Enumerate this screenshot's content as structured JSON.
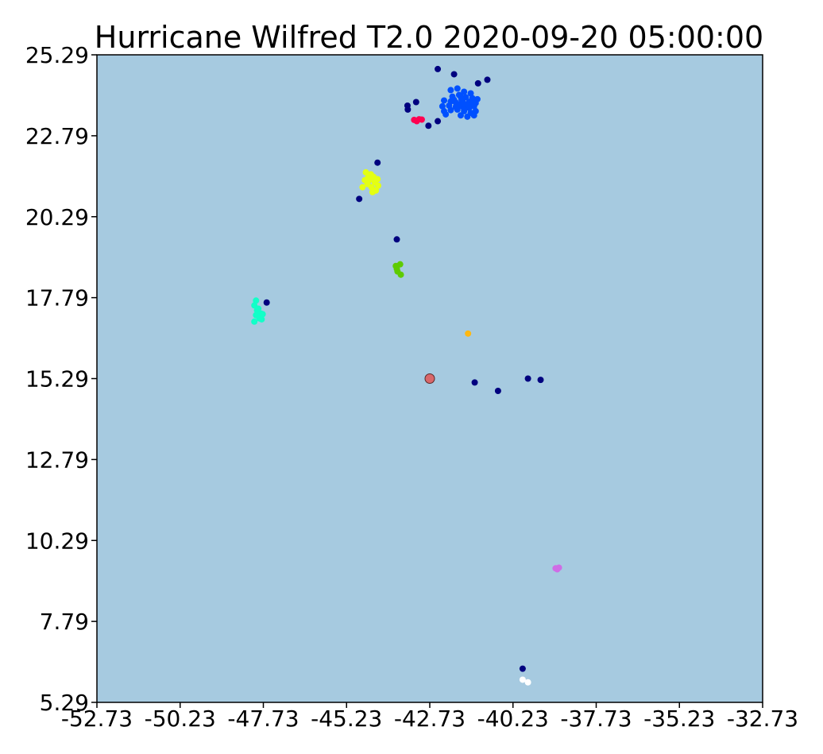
{
  "chart_data": {
    "type": "scatter",
    "title": "Hurricane Wilfred T2.0 2020-09-20 05:00:00",
    "xlabel": "",
    "ylabel": "",
    "xlim": [
      -52.73,
      -32.73
    ],
    "ylim": [
      5.29,
      25.29
    ],
    "grid": false,
    "background_color": "#a6cae0",
    "xticks": [
      "-52.73",
      "-50.23",
      "-47.73",
      "-45.23",
      "-42.73",
      "-40.23",
      "-37.73",
      "-35.23",
      "-32.73"
    ],
    "yticks": [
      "5.29",
      "7.79",
      "10.29",
      "12.79",
      "15.29",
      "17.79",
      "20.29",
      "22.79",
      "25.29"
    ],
    "center": {
      "x": -42.73,
      "y": 15.29,
      "color": "#d9676a"
    },
    "series": [
      {
        "color": "#00007f",
        "points": [
          [
            -42.49,
            24.85
          ],
          [
            -42.0,
            24.69
          ],
          [
            -41.28,
            24.41
          ],
          [
            -41.0,
            24.52
          ],
          [
            -43.4,
            23.72
          ],
          [
            -43.39,
            23.6
          ],
          [
            -43.14,
            23.83
          ],
          [
            -42.77,
            23.1
          ],
          [
            -42.49,
            23.24
          ],
          [
            -44.3,
            21.96
          ],
          [
            -44.85,
            20.84
          ],
          [
            -43.72,
            19.59
          ],
          [
            -47.63,
            17.64
          ],
          [
            -41.38,
            15.17
          ],
          [
            -40.68,
            14.91
          ],
          [
            -39.78,
            15.29
          ],
          [
            -39.4,
            15.25
          ],
          [
            -39.94,
            6.33
          ]
        ]
      },
      {
        "color": "#0050ff",
        "points": [
          [
            -42.1,
            24.2
          ],
          [
            -41.9,
            24.25
          ],
          [
            -41.7,
            24.15
          ],
          [
            -41.5,
            24.1
          ],
          [
            -42.05,
            24.0
          ],
          [
            -41.85,
            24.05
          ],
          [
            -41.65,
            23.98
          ],
          [
            -41.45,
            23.95
          ],
          [
            -41.3,
            23.92
          ],
          [
            -42.3,
            23.88
          ],
          [
            -42.1,
            23.85
          ],
          [
            -41.95,
            23.82
          ],
          [
            -41.75,
            23.86
          ],
          [
            -41.55,
            23.84
          ],
          [
            -41.35,
            23.8
          ],
          [
            -42.35,
            23.7
          ],
          [
            -42.15,
            23.72
          ],
          [
            -41.95,
            23.68
          ],
          [
            -41.75,
            23.7
          ],
          [
            -41.55,
            23.65
          ],
          [
            -41.4,
            23.7
          ],
          [
            -42.3,
            23.55
          ],
          [
            -42.1,
            23.58
          ],
          [
            -41.9,
            23.6
          ],
          [
            -41.7,
            23.55
          ],
          [
            -41.5,
            23.5
          ],
          [
            -41.35,
            23.55
          ],
          [
            -42.25,
            23.45
          ],
          [
            -41.8,
            23.42
          ],
          [
            -41.6,
            23.38
          ],
          [
            -41.4,
            23.42
          ],
          [
            -42.0,
            23.9
          ],
          [
            -41.8,
            24.0
          ],
          [
            -41.62,
            23.76
          ],
          [
            -41.85,
            23.76
          ],
          [
            -41.7,
            23.62
          ],
          [
            -41.55,
            23.72
          ],
          [
            -41.45,
            23.78
          ],
          [
            -41.78,
            23.92
          ]
        ]
      },
      {
        "color": "#ff0050",
        "points": [
          [
            -43.2,
            23.28
          ],
          [
            -43.05,
            23.3
          ],
          [
            -43.12,
            23.24
          ],
          [
            -42.97,
            23.29
          ]
        ]
      },
      {
        "color": "#e4ff13",
        "points": [
          [
            -44.65,
            21.66
          ],
          [
            -44.5,
            21.6
          ],
          [
            -44.42,
            21.52
          ],
          [
            -44.55,
            21.42
          ],
          [
            -44.38,
            21.35
          ],
          [
            -44.6,
            21.3
          ],
          [
            -44.48,
            21.2
          ],
          [
            -44.35,
            21.1
          ],
          [
            -44.75,
            21.2
          ],
          [
            -44.45,
            21.05
          ],
          [
            -44.28,
            21.25
          ],
          [
            -44.3,
            21.45
          ],
          [
            -44.58,
            21.5
          ],
          [
            -44.68,
            21.42
          ]
        ]
      },
      {
        "color": "#5ecb00",
        "points": [
          [
            -43.75,
            18.77
          ],
          [
            -43.62,
            18.82
          ],
          [
            -43.7,
            18.6
          ],
          [
            -43.6,
            18.5
          ],
          [
            -43.72,
            18.68
          ]
        ]
      },
      {
        "color": "#13ffc8",
        "points": [
          [
            -47.95,
            17.7
          ],
          [
            -48.0,
            17.55
          ],
          [
            -47.92,
            17.4
          ],
          [
            -47.8,
            17.3
          ],
          [
            -47.95,
            17.25
          ],
          [
            -47.85,
            17.15
          ],
          [
            -47.75,
            17.28
          ],
          [
            -48.0,
            17.05
          ],
          [
            -47.88,
            17.45
          ],
          [
            -47.78,
            17.12
          ]
        ]
      },
      {
        "color": "#ffb812",
        "points": [
          [
            -41.58,
            16.68
          ]
        ]
      },
      {
        "color": "#cf6ce6",
        "points": [
          [
            -38.95,
            9.43
          ],
          [
            -38.85,
            9.45
          ],
          [
            -38.9,
            9.4
          ]
        ]
      },
      {
        "color": "#ffffff",
        "points": [
          [
            -39.94,
            5.99
          ],
          [
            -39.78,
            5.91
          ]
        ]
      }
    ]
  }
}
